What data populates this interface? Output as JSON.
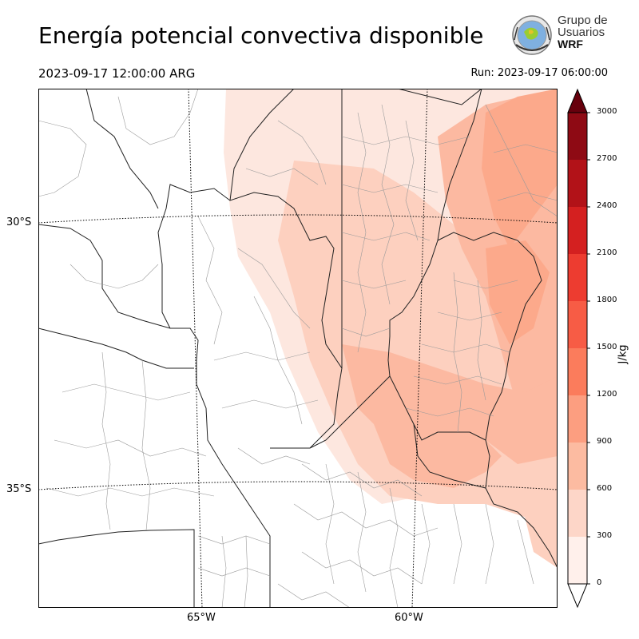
{
  "header": {
    "title": "Energía potencial convectiva disponible",
    "valid_time": "2023-09-17 12:00:00 ARG",
    "run_time": "Run: 2023-09-17 06:00:00"
  },
  "logo": {
    "line1": "Grupo de",
    "line2": "Usuarios",
    "line3": "WRF"
  },
  "map": {
    "lat_labels": [
      "30°S",
      "35°S"
    ],
    "lon_labels": [
      "65°W",
      "60°W"
    ]
  },
  "colorbar": {
    "unit": "J/kg",
    "ticks": [
      "0",
      "300",
      "600",
      "900",
      "1200",
      "1500",
      "1800",
      "2100",
      "2400",
      "2700",
      "3000"
    ],
    "colors": [
      "#fff0eb",
      "#fdd6c8",
      "#fcbba1",
      "#fc9e80",
      "#fb7c5c",
      "#f75c45",
      "#ed3c30",
      "#d42020",
      "#b21218",
      "#8e0a14",
      "#6e0510"
    ],
    "extend_top_color": "#67000d"
  }
}
